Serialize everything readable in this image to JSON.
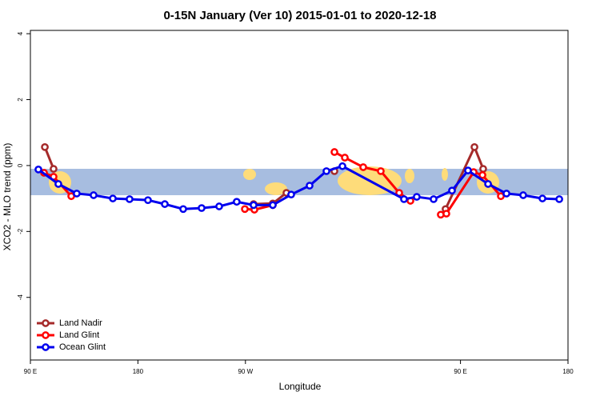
{
  "chart_data": {
    "type": "line",
    "title": "0-15N January (Ver 10)   2015-01-01 to 2020-12-18",
    "x_label": "Longitude",
    "y_label": "XCO2 - MLO trend (ppm)",
    "xlim": [
      90,
      540
    ],
    "xticks": [
      {
        "value": 90,
        "label": "90 E"
      },
      180,
      {
        "value": 270,
        "label": "90 W"
      },
      {
        "value": 450,
        "label": "90 E"
      },
      {
        "value": 540,
        "label": "180"
      }
    ],
    "ylim": [
      -5.9,
      4.1
    ],
    "yticks": [
      -4,
      -2,
      0,
      2,
      4
    ],
    "legend": "bottom-left",
    "series": [
      {
        "name": "Land Nadir",
        "color": "#a52a2a",
        "x": [
          102.1,
          109.4,
          null,
          276.8,
          292.9,
          304.3,
          null,
          344.5,
          null,
          437.5,
          461.7,
          469
        ],
        "values": [
          0.56,
          -0.1,
          null,
          -1.17,
          -1.15,
          -0.83,
          null,
          -0.17,
          null,
          -1.32,
          0.56,
          -0.1
        ]
      },
      {
        "name": "Land Glint",
        "color": "#ff0000",
        "x": [
          101.4,
          109.4,
          124.2,
          null,
          269.5,
          277.5,
          292.9,
          null,
          344.5,
          353.2,
          368.6,
          383.3,
          398.7,
          408.1,
          null,
          433.5,
          438.2,
          461,
          468.4,
          483.8
        ],
        "values": [
          -0.22,
          -0.34,
          -0.93,
          null,
          -1.32,
          -1.34,
          -1.2,
          null,
          0.41,
          0.24,
          -0.05,
          -0.17,
          -0.83,
          -1.07,
          null,
          -1.49,
          -1.46,
          -0.2,
          -0.29,
          -0.93
        ]
      },
      {
        "name": "Ocean Glint",
        "color": "#0000ee",
        "x": [
          96.7,
          113.4,
          128.8,
          142.9,
          159,
          173,
          188.4,
          202.5,
          217.9,
          233.3,
          248,
          262.7,
          276.8,
          292.9,
          308.3,
          323.7,
          337.8,
          351.2,
          402.7,
          413.4,
          427.5,
          442.9,
          456.3,
          473.1,
          488.5,
          502.5,
          518.6,
          532.7
        ],
        "values": [
          -0.12,
          -0.56,
          -0.85,
          -0.9,
          -1.0,
          -1.02,
          -1.05,
          -1.17,
          -1.32,
          -1.29,
          -1.24,
          -1.1,
          -1.2,
          -1.2,
          -0.88,
          -0.61,
          -0.17,
          -0.02,
          -1.02,
          -0.95,
          -1.02,
          -0.76,
          -0.15,
          -0.56,
          -0.85,
          -0.9,
          -1.0,
          -1.02
        ]
      }
    ]
  }
}
